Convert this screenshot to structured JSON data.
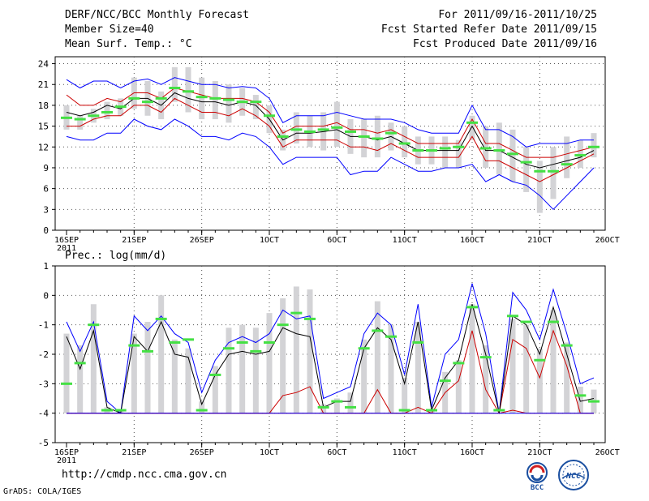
{
  "header": {
    "title": "DERF/NCC/BCC Monthly Forecast",
    "member_size": "Member Size=40",
    "variable": "Mean Surf. Temp.: °C",
    "period": "For 2011/09/16-2011/10/25",
    "started": "Fcst Started Refer Date 2011/09/15",
    "produced": "Fcst Produced Date 2011/09/16"
  },
  "footer": {
    "url": "http://cmdp.ncc.cma.gov.cn",
    "credit": "GrADS: COLA/IGES"
  },
  "logos": {
    "bcc": "BCC",
    "ncc": "NCC"
  },
  "chart_data": [
    {
      "type": "line",
      "title": "Mean Surf. Temp.: °C",
      "x": [
        "16SEP",
        "17SEP",
        "18SEP",
        "19SEP",
        "20SEP",
        "21SEP",
        "22SEP",
        "23SEP",
        "24SEP",
        "25SEP",
        "26SEP",
        "27SEP",
        "28SEP",
        "29SEP",
        "30SEP",
        "1OCT",
        "2OCT",
        "3OCT",
        "4OCT",
        "5OCT",
        "6OCT",
        "7OCT",
        "8OCT",
        "9OCT",
        "10OCT",
        "11OCT",
        "12OCT",
        "13OCT",
        "14OCT",
        "15OCT",
        "16OCT",
        "17OCT",
        "18OCT",
        "19OCT",
        "20OCT",
        "21OCT",
        "22OCT",
        "23OCT",
        "24OCT",
        "25OCT"
      ],
      "xtick_labels": [
        "16SEP",
        "21SEP",
        "26SEP",
        "1OCT",
        "6OCT",
        "11OCT",
        "16OCT",
        "21OCT",
        "26OCT"
      ],
      "xtick_sublabel": "2011",
      "ylim": [
        0,
        25
      ],
      "yticks": [
        0,
        3,
        6,
        9,
        12,
        15,
        18,
        21,
        24
      ],
      "series": [
        {
          "name": "max",
          "color": "#0000ff",
          "values": [
            21.7,
            20.5,
            21.5,
            21.5,
            20.5,
            21.5,
            21.8,
            21.0,
            22.0,
            21.5,
            21.0,
            21.0,
            20.5,
            20.7,
            20.5,
            19.0,
            15.5,
            16.5,
            16.5,
            16.5,
            17.0,
            16.5,
            16.0,
            16.0,
            16.0,
            15.5,
            14.5,
            14.0,
            14.0,
            14.0,
            18.0,
            14.5,
            14.5,
            13.5,
            12.0,
            12.5,
            12.5,
            12.5,
            13.0,
            13.0
          ]
        },
        {
          "name": "plus_sd",
          "color": "#cc0000",
          "values": [
            19.5,
            18.0,
            18.0,
            19.0,
            18.5,
            19.8,
            19.8,
            19.0,
            20.5,
            20.0,
            19.5,
            19.0,
            19.0,
            19.0,
            18.5,
            17.0,
            14.0,
            15.0,
            15.0,
            15.0,
            15.5,
            14.5,
            14.5,
            14.0,
            14.5,
            13.5,
            12.5,
            12.5,
            12.5,
            12.5,
            16.0,
            12.5,
            12.5,
            11.5,
            10.5,
            10.5,
            10.5,
            11.0,
            11.5,
            12.0
          ]
        },
        {
          "name": "mean",
          "color": "#000000",
          "values": [
            17.0,
            16.5,
            17.0,
            18.0,
            17.5,
            19.0,
            19.0,
            18.0,
            19.8,
            19.0,
            18.5,
            18.5,
            18.0,
            18.5,
            18.0,
            16.0,
            13.0,
            14.0,
            14.0,
            14.2,
            14.5,
            13.5,
            13.5,
            13.0,
            13.5,
            12.5,
            11.5,
            11.5,
            11.5,
            11.5,
            15.0,
            11.5,
            11.5,
            10.5,
            9.5,
            9.0,
            9.5,
            10.0,
            10.5,
            11.5
          ]
        },
        {
          "name": "minus_sd",
          "color": "#cc0000",
          "values": [
            15.0,
            15.0,
            16.0,
            16.5,
            16.5,
            18.0,
            18.0,
            17.0,
            19.0,
            18.0,
            17.0,
            17.0,
            16.5,
            17.5,
            16.5,
            15.0,
            12.0,
            13.0,
            13.0,
            13.0,
            13.0,
            12.0,
            12.0,
            11.5,
            12.5,
            11.5,
            10.5,
            10.5,
            10.5,
            10.5,
            13.5,
            10.0,
            10.0,
            9.0,
            8.0,
            7.0,
            8.0,
            9.0,
            10.0,
            11.0
          ]
        },
        {
          "name": "min",
          "color": "#0000ff",
          "values": [
            13.5,
            13.0,
            13.0,
            14.0,
            14.0,
            16.0,
            15.0,
            14.5,
            16.0,
            15.0,
            13.5,
            13.5,
            13.0,
            14.0,
            13.5,
            12.0,
            9.5,
            10.5,
            10.5,
            10.5,
            10.5,
            8.0,
            8.5,
            8.5,
            10.5,
            9.5,
            8.5,
            8.5,
            9.0,
            9.0,
            9.5,
            7.0,
            8.0,
            7.0,
            6.5,
            5.0,
            3.0,
            5.0,
            7.0,
            9.0
          ]
        },
        {
          "name": "observed",
          "color": "#44e044",
          "values": [
            16.2,
            16.0,
            16.5,
            17.0,
            17.8,
            19.0,
            18.5,
            19.0,
            20.5,
            20.0,
            19.2,
            19.0,
            18.8,
            18.5,
            18.5,
            16.5,
            13.5,
            14.5,
            14.2,
            14.5,
            14.8,
            14.2,
            13.5,
            13.2,
            14.0,
            12.5,
            11.5,
            11.5,
            11.8,
            12.0,
            15.5,
            11.8,
            11.5,
            11.0,
            9.8,
            8.5,
            8.5,
            9.5,
            10.8,
            12.0
          ]
        }
      ],
      "bars": {
        "name": "ensemble spread",
        "color": "#d3d3d6",
        "low": [
          14.5,
          14.5,
          15.5,
          16.0,
          16.5,
          17.5,
          16.5,
          16.0,
          18.5,
          17.0,
          16.0,
          16.0,
          15.5,
          16.5,
          16.0,
          14.0,
          11.5,
          12.5,
          12.0,
          11.5,
          12.0,
          11.0,
          10.5,
          10.5,
          11.5,
          10.5,
          9.5,
          9.5,
          9.0,
          9.0,
          13.0,
          9.0,
          8.0,
          7.0,
          5.5,
          2.5,
          4.5,
          7.5,
          9.0,
          10.5
        ],
        "high": [
          18.0,
          16.5,
          17.5,
          18.5,
          19.0,
          22.0,
          21.5,
          20.0,
          23.5,
          23.5,
          22.0,
          21.5,
          21.0,
          20.5,
          19.5,
          18.0,
          14.5,
          17.0,
          16.5,
          17.0,
          18.5,
          16.0,
          16.0,
          16.5,
          15.5,
          15.0,
          13.5,
          13.5,
          13.5,
          13.0,
          16.5,
          15.0,
          15.5,
          14.5,
          12.0,
          10.0,
          12.0,
          13.5,
          13.0,
          14.0
        ]
      }
    },
    {
      "type": "line",
      "title": "Prec.: log(mm/d)",
      "x": [
        "16SEP",
        "17SEP",
        "18SEP",
        "19SEP",
        "20SEP",
        "21SEP",
        "22SEP",
        "23SEP",
        "24SEP",
        "25SEP",
        "26SEP",
        "27SEP",
        "28SEP",
        "29SEP",
        "30SEP",
        "1OCT",
        "2OCT",
        "3OCT",
        "4OCT",
        "5OCT",
        "6OCT",
        "7OCT",
        "8OCT",
        "9OCT",
        "10OCT",
        "11OCT",
        "12OCT",
        "13OCT",
        "14OCT",
        "15OCT",
        "16OCT",
        "17OCT",
        "18OCT",
        "19OCT",
        "20OCT",
        "21OCT",
        "22OCT",
        "23OCT",
        "24OCT",
        "25OCT"
      ],
      "xtick_labels": [
        "16SEP",
        "21SEP",
        "26SEP",
        "1OCT",
        "6OCT",
        "11OCT",
        "16OCT",
        "21OCT",
        "26OCT"
      ],
      "xtick_sublabel": "2011",
      "ylim": [
        -5,
        1
      ],
      "yticks": [
        -5,
        -4,
        -3,
        -2,
        -1,
        0,
        1
      ],
      "series": [
        {
          "name": "max",
          "color": "#0000ff",
          "values": [
            -0.9,
            -1.9,
            -0.9,
            -3.6,
            -4.0,
            -0.7,
            -1.2,
            -0.7,
            -1.3,
            -1.6,
            -3.3,
            -2.2,
            -1.6,
            -1.4,
            -1.6,
            -1.3,
            -0.5,
            -0.8,
            -0.7,
            -3.5,
            -3.3,
            -3.1,
            -1.3,
            -0.6,
            -1.0,
            -2.7,
            -0.3,
            -3.8,
            -2.0,
            -1.5,
            0.4,
            -1.3,
            -4.0,
            0.1,
            -0.5,
            -1.5,
            0.2,
            -1.3,
            -3.0,
            -2.8
          ]
        },
        {
          "name": "plus_sd",
          "color": "#cc0000",
          "values": [
            -4.0,
            -4.0,
            -4.0,
            -4.0,
            -4.0,
            -4.0,
            -4.0,
            -4.0,
            -4.0,
            -4.0,
            -4.0,
            -4.0,
            -4.0,
            -4.0,
            -4.0,
            -4.0,
            -3.4,
            -3.3,
            -3.1,
            -4.0,
            -4.0,
            -4.0,
            -4.0,
            -3.2,
            -4.0,
            -4.0,
            -3.8,
            -4.0,
            -3.3,
            -2.9,
            -1.2,
            -3.2,
            -4.0,
            -1.5,
            -1.8,
            -2.8,
            -1.2,
            -2.4,
            -4.0,
            -4.0
          ]
        },
        {
          "name": "mean",
          "color": "#000000",
          "values": [
            -1.4,
            -2.5,
            -1.2,
            -3.8,
            -4.0,
            -1.4,
            -1.9,
            -0.9,
            -2.0,
            -2.1,
            -3.7,
            -2.7,
            -2.0,
            -1.9,
            -2.0,
            -1.9,
            -1.1,
            -1.3,
            -1.4,
            -3.8,
            -3.6,
            -3.6,
            -1.8,
            -1.1,
            -1.5,
            -3.0,
            -0.9,
            -3.9,
            -2.8,
            -2.2,
            -0.3,
            -2.0,
            -4.0,
            -0.7,
            -1.0,
            -2.0,
            -0.4,
            -2.0,
            -3.6,
            -3.5
          ]
        },
        {
          "name": "minus_sd",
          "color": "#cc0000",
          "values": [
            -4.0,
            -4.0,
            -4.0,
            -4.0,
            -4.0,
            -4.0,
            -4.0,
            -4.0,
            -4.0,
            -4.0,
            -4.0,
            -4.0,
            -4.0,
            -4.0,
            -4.0,
            -4.0,
            -4.0,
            -4.0,
            -4.0,
            -4.0,
            -4.0,
            -4.0,
            -4.0,
            -4.0,
            -4.0,
            -4.0,
            -4.0,
            -4.0,
            -4.0,
            -4.0,
            -4.0,
            -4.0,
            -4.0,
            -3.9,
            -4.0,
            -4.0,
            -4.0,
            -4.0,
            -4.0,
            -4.0
          ]
        },
        {
          "name": "min",
          "color": "#0000ff",
          "values": [
            -4.0,
            -4.0,
            -4.0,
            -4.0,
            -4.0,
            -4.0,
            -4.0,
            -4.0,
            -4.0,
            -4.0,
            -4.0,
            -4.0,
            -4.0,
            -4.0,
            -4.0,
            -4.0,
            -4.0,
            -4.0,
            -4.0,
            -4.0,
            -4.0,
            -4.0,
            -4.0,
            -4.0,
            -4.0,
            -4.0,
            -4.0,
            -4.0,
            -4.0,
            -4.0,
            -4.0,
            -4.0,
            -4.0,
            -4.0,
            -4.0,
            -4.0,
            -4.0,
            -4.0,
            -4.0,
            -4.0
          ]
        },
        {
          "name": "observed",
          "color": "#44e044",
          "values": [
            -3.0,
            -2.3,
            -1.0,
            -3.9,
            -3.9,
            -1.7,
            -1.9,
            -0.8,
            -1.6,
            -1.5,
            -3.9,
            -2.7,
            -1.8,
            -1.6,
            -1.9,
            -1.6,
            -1.0,
            -0.6,
            -0.8,
            -3.8,
            -3.6,
            -3.8,
            -1.8,
            -1.2,
            -1.4,
            -3.9,
            -1.6,
            -3.9,
            -2.9,
            -2.3,
            -0.4,
            -2.1,
            -3.9,
            -0.7,
            -0.9,
            -2.2,
            -0.9,
            -1.7,
            -3.4,
            -3.6
          ]
        }
      ],
      "bars": {
        "name": "ensemble spread",
        "color": "#d3d3d6",
        "low": [
          -4.0,
          -4.0,
          -4.0,
          -4.0,
          -4.0,
          -4.0,
          -4.0,
          -4.0,
          -4.0,
          -4.0,
          -4.0,
          -4.0,
          -4.0,
          -4.0,
          -4.0,
          -4.0,
          -4.0,
          -4.0,
          -4.0,
          -4.0,
          -4.0,
          -4.0,
          -4.0,
          -4.0,
          -4.0,
          -4.0,
          -4.0,
          -4.0,
          -4.0,
          -4.0,
          -4.0,
          -4.0,
          -4.0,
          -4.0,
          -4.0,
          -4.0,
          -4.0,
          -4.0,
          -4.0,
          -4.0
        ],
        "high": [
          -1.3,
          -1.7,
          -0.3,
          -3.8,
          -3.9,
          -1.3,
          -0.9,
          0.0,
          -1.5,
          -1.8,
          -3.6,
          -2.4,
          -1.1,
          -1.0,
          -1.1,
          -0.6,
          -0.1,
          0.3,
          0.2,
          -3.7,
          -3.5,
          -3.3,
          -1.5,
          -0.2,
          -1.0,
          -2.8,
          -0.9,
          -3.9,
          -2.6,
          -2.2,
          -0.3,
          -1.7,
          -4.0,
          -0.8,
          -1.0,
          -1.8,
          -0.5,
          -1.6,
          -3.1,
          -3.2
        ]
      }
    }
  ]
}
